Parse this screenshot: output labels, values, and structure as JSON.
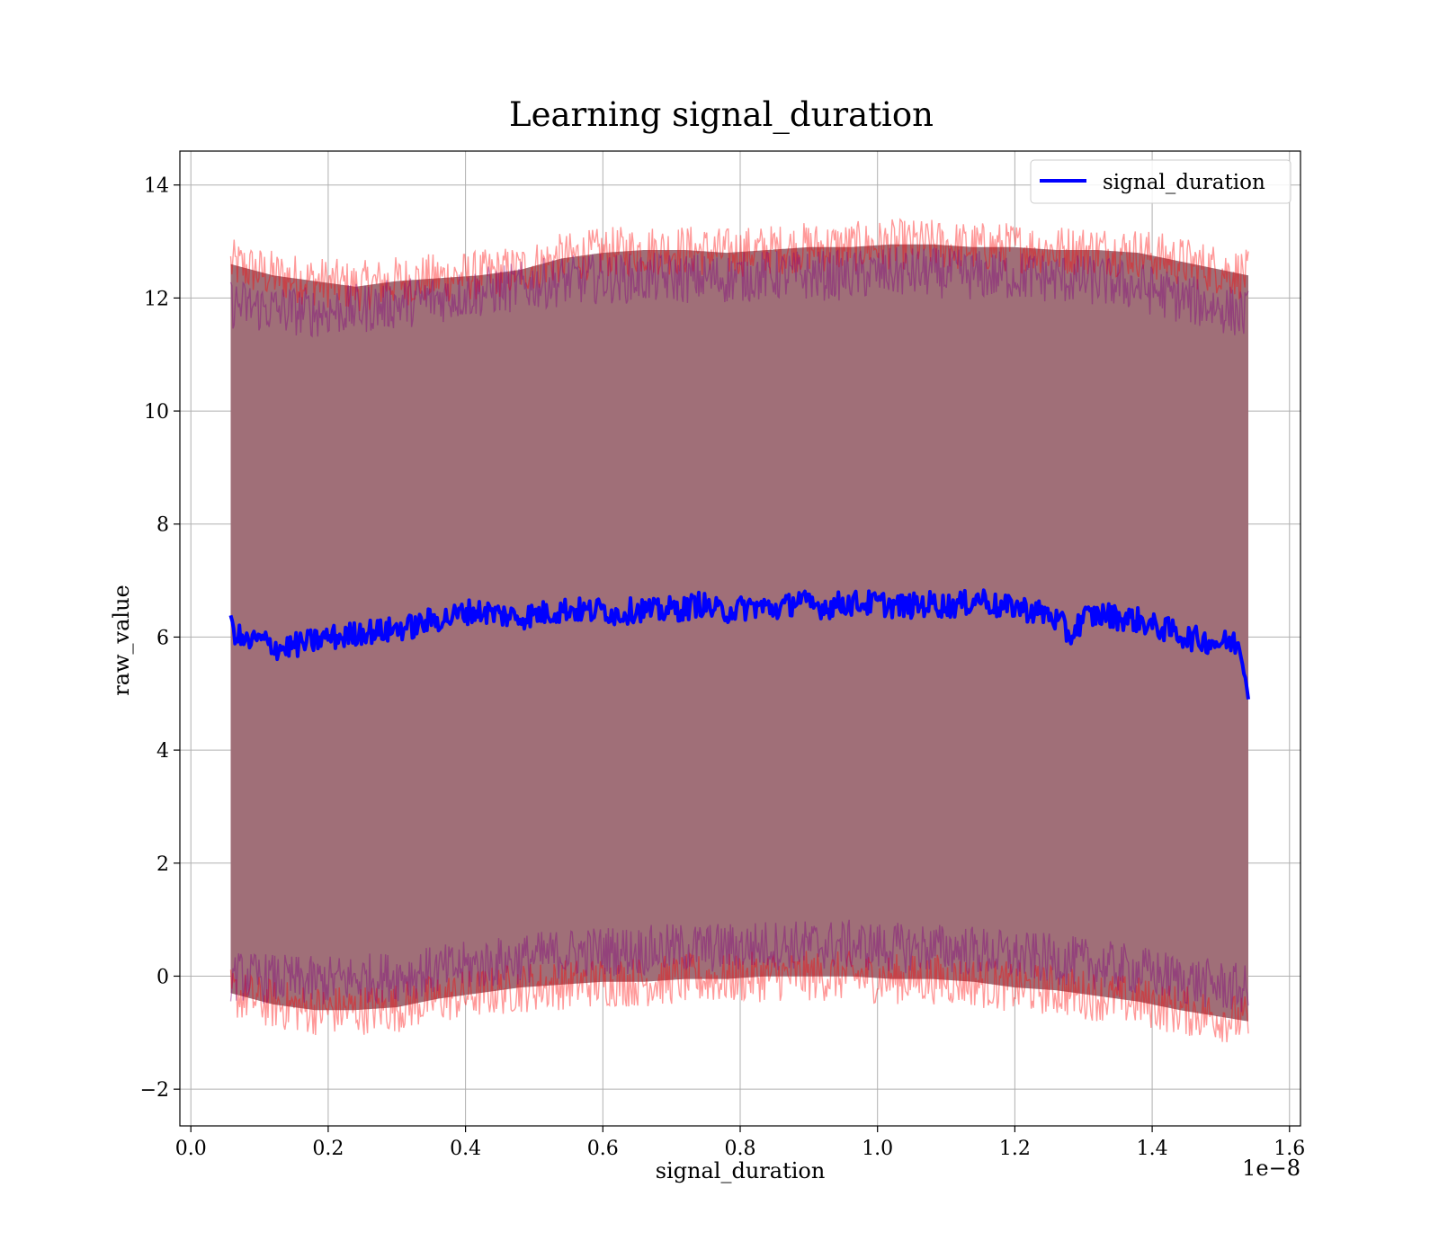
{
  "chart_data": {
    "type": "line",
    "title": "Learning signal_duration",
    "xlabel": "signal_duration",
    "ylabel": "raw_value",
    "x_offset_label": "1e−8",
    "xlim": [
      -0.016,
      1.616
    ],
    "ylim": [
      -2.65,
      14.6
    ],
    "x_ticks": [
      0.0,
      0.2,
      0.4,
      0.6,
      0.8,
      1.0,
      1.2,
      1.4,
      1.6
    ],
    "x_tick_labels": [
      "0.0",
      "0.2",
      "0.4",
      "0.6",
      "0.8",
      "1.0",
      "1.2",
      "1.4",
      "1.6"
    ],
    "y_ticks": [
      -2,
      0,
      2,
      4,
      6,
      8,
      10,
      12,
      14
    ],
    "y_tick_labels": [
      "−2",
      "0",
      "2",
      "4",
      "6",
      "8",
      "10",
      "12",
      "14"
    ],
    "grid": true,
    "legend_position": "top-right",
    "series": [
      {
        "name": "signal_duration",
        "color": "#0000ff",
        "x": [
          0.058,
          0.07,
          0.08,
          0.1,
          0.12,
          0.13,
          0.15,
          0.17,
          0.2,
          0.22,
          0.25,
          0.28,
          0.3,
          0.33,
          0.35,
          0.38,
          0.4,
          0.43,
          0.45,
          0.48,
          0.5,
          0.53,
          0.55,
          0.58,
          0.6,
          0.62,
          0.65,
          0.68,
          0.7,
          0.72,
          0.74,
          0.77,
          0.8,
          0.82,
          0.85,
          0.87,
          0.885,
          0.9,
          0.93,
          0.95,
          0.98,
          1.0,
          1.03,
          1.05,
          1.08,
          1.1,
          1.13,
          1.15,
          1.18,
          1.2,
          1.23,
          1.25,
          1.27,
          1.28,
          1.3,
          1.33,
          1.35,
          1.38,
          1.4,
          1.43,
          1.45,
          1.47,
          1.5,
          1.52,
          1.53,
          1.54
        ],
        "y": [
          6.2,
          6.0,
          5.9,
          5.95,
          5.85,
          5.8,
          5.85,
          5.9,
          6.0,
          6.0,
          6.1,
          6.1,
          6.15,
          6.2,
          6.3,
          6.35,
          6.45,
          6.45,
          6.4,
          6.35,
          6.4,
          6.45,
          6.5,
          6.45,
          6.5,
          6.4,
          6.5,
          6.45,
          6.5,
          6.5,
          6.6,
          6.45,
          6.5,
          6.55,
          6.5,
          6.55,
          6.7,
          6.55,
          6.55,
          6.6,
          6.6,
          6.6,
          6.55,
          6.55,
          6.6,
          6.55,
          6.6,
          6.7,
          6.5,
          6.55,
          6.45,
          6.4,
          6.2,
          6.0,
          6.35,
          6.4,
          6.35,
          6.3,
          6.2,
          6.1,
          6.0,
          5.95,
          5.9,
          5.9,
          5.8,
          4.9
        ]
      }
    ],
    "bands": [
      {
        "color": "#ff0000",
        "upper": [
          12.6,
          12.4,
          12.3,
          12.2,
          12.3,
          12.35,
          12.4,
          12.5,
          12.7,
          12.8,
          12.85,
          12.85,
          12.8,
          12.85,
          12.9,
          12.9,
          12.95,
          12.95,
          12.9,
          12.9,
          12.85,
          12.85,
          12.8,
          12.65,
          12.4
        ],
        "lower": [
          -0.3,
          -0.5,
          -0.6,
          -0.6,
          -0.55,
          -0.4,
          -0.3,
          -0.2,
          -0.15,
          -0.1,
          -0.1,
          -0.05,
          -0.05,
          0.0,
          0.0,
          0.0,
          -0.05,
          -0.05,
          -0.1,
          -0.2,
          -0.25,
          -0.35,
          -0.45,
          -0.6,
          -0.8
        ]
      },
      {
        "color": "#800080",
        "upper": [
          11.9,
          11.8,
          11.75,
          11.8,
          11.9,
          12.0,
          12.1,
          12.2,
          12.3,
          12.35,
          12.35,
          12.35,
          12.35,
          12.4,
          12.4,
          12.4,
          12.45,
          12.45,
          12.4,
          12.4,
          12.35,
          12.3,
          12.2,
          12.0,
          11.7
        ],
        "lower": [
          0.0,
          -0.05,
          -0.1,
          -0.05,
          0.0,
          0.1,
          0.2,
          0.3,
          0.4,
          0.45,
          0.45,
          0.5,
          0.5,
          0.55,
          0.55,
          0.55,
          0.5,
          0.5,
          0.45,
          0.35,
          0.3,
          0.2,
          0.1,
          -0.05,
          -0.25
        ]
      }
    ],
    "band_x": [
      0.058,
      0.12,
      0.18,
      0.24,
      0.3,
      0.36,
      0.42,
      0.48,
      0.54,
      0.6,
      0.66,
      0.72,
      0.78,
      0.84,
      0.9,
      0.96,
      1.02,
      1.08,
      1.14,
      1.2,
      1.26,
      1.32,
      1.38,
      1.44,
      1.54
    ]
  }
}
